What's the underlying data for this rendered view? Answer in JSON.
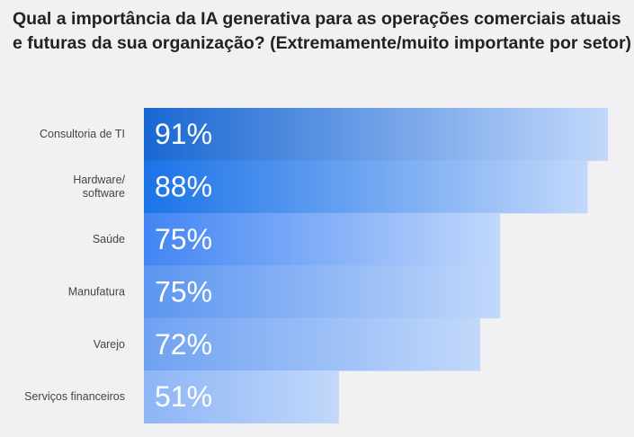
{
  "chart_data": {
    "type": "bar",
    "orientation": "horizontal",
    "title": "Qual a importância da IA generativa para as operações comerciais atuais e futuras da sua organização? (Extremamente/muito importante por setor)",
    "categories": [
      [
        "Consultoria de TI"
      ],
      [
        "Hardware/",
        "software"
      ],
      [
        "Saúde"
      ],
      [
        "Manufatura"
      ],
      [
        "Varejo"
      ],
      [
        "Serviços financeiros"
      ]
    ],
    "values": [
      91,
      88,
      75,
      75,
      72,
      51
    ],
    "labels": [
      "91%",
      "88%",
      "75%",
      "75%",
      "72%",
      "51%"
    ],
    "xlim": [
      22,
      91
    ],
    "xlabel": "",
    "ylabel": "",
    "grid": false,
    "colors": {
      "dark": [
        "#1967d2",
        "#1a73e8",
        "#4285f4",
        "#5b95f0",
        "#6fa1f2",
        "#8db5f5"
      ],
      "light": "#c2d8fb"
    }
  }
}
